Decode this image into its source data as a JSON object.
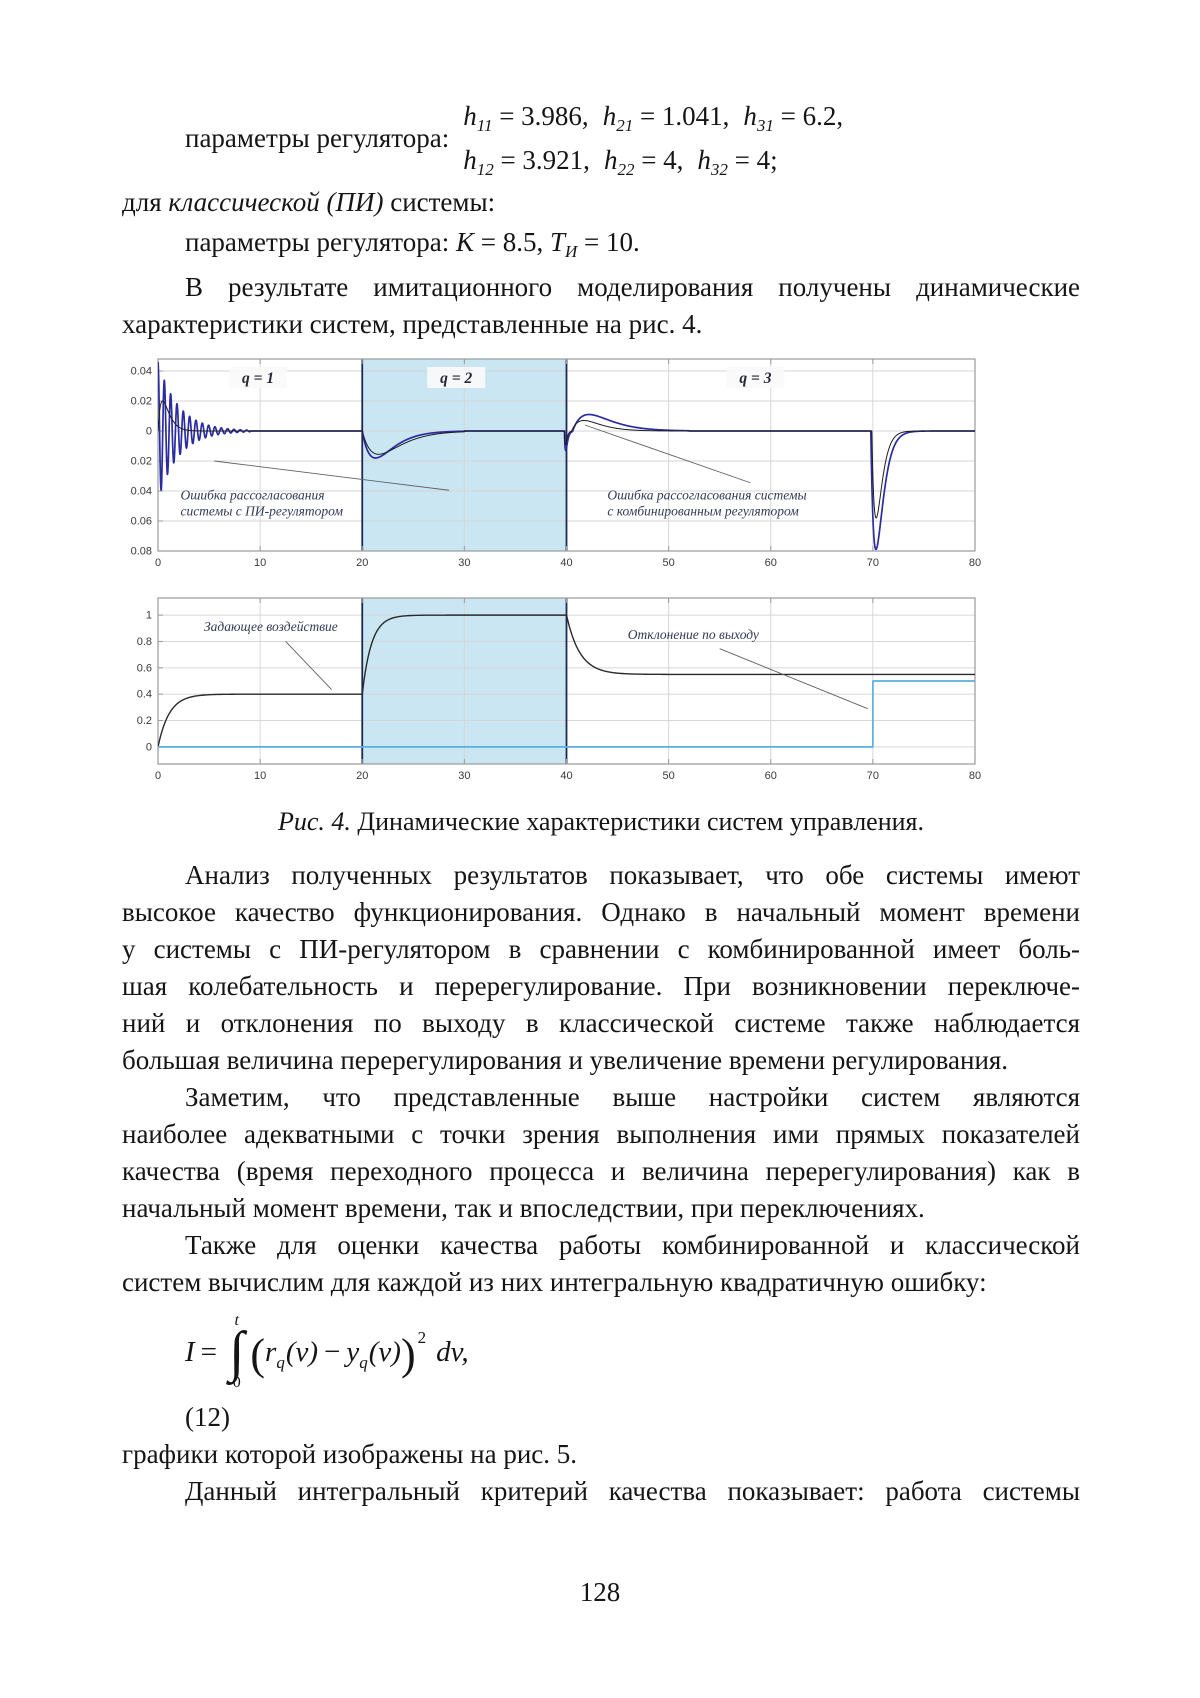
{
  "page_number": "128",
  "top": {
    "params_label": "параметры регулятора:",
    "h": {
      "row1": [
        {
          "v": "h",
          "s": "11",
          "eq": " = 3.986,"
        },
        {
          "v": "h",
          "s": "21",
          "eq": " = 1.041,"
        },
        {
          "v": "h",
          "s": "31",
          "eq": " = 6.2,"
        }
      ],
      "row2": [
        {
          "v": "h",
          "s": "12",
          "eq": " = 3.921,"
        },
        {
          "v": "h",
          "s": "22",
          "eq": " = 4,"
        },
        {
          "v": "h",
          "s": "32",
          "eq": " = 4;"
        }
      ]
    },
    "classic": {
      "pre": "для ",
      "italic": "классической (ПИ)",
      "post": " системы:"
    },
    "pi": {
      "label": "параметры регулятора: ",
      "k": "K",
      "k_eq": " = 8.5, ",
      "t": "T",
      "t_sub": "И",
      "t_eq": " = 10."
    }
  },
  "intro": [
    "В результате имитационного моделирования получены динамические",
    "характеристики систем, представленные на рис. 4."
  ],
  "caption": {
    "label": "Рис. 4.",
    "text": " Динамические характеристики систем управления."
  },
  "body": {
    "p1": [
      "Анализ полученных результатов показывает, что обе системы имеют",
      "высокое качество функционирования. Однако в начальный момент времени",
      "у системы с ПИ-регулятором в сравнении с комбинированной имеет боль-",
      "шая колебательность и перерегулирование. При возникновении переключе-",
      "ний и отклонения по выходу в классической системе также наблюдается",
      "большая величина перерегулирования и увеличение времени регулирования."
    ],
    "p2": [
      "Заметим, что представленные выше настройки систем являются",
      "наиболее адекватными с точки зрения выполнения ими прямых показателей",
      "качества (время переходного процесса и величина перерегулирования) как в",
      "начальный момент времени, так и впоследствии, при переключениях."
    ],
    "p3": [
      "Также для оценки качества работы комбинированной и классической",
      "систем вычислим для каждой из них интегральную квадратичную ошибку:"
    ],
    "eq_no": "(12)",
    "eq_tail": "графики которой изображены на рис. 5.",
    "p4": "Данный интегральный критерий качества показывает: работа системы"
  },
  "eq12": {
    "lhs": "I",
    "equals": "=",
    "upper": "t",
    "sign": "∫",
    "lower": "0",
    "lp": "(",
    "r": "r",
    "r_sub": "q",
    "r_arg": "(v)",
    "minus": "−",
    "y": "y",
    "y_sub": "q",
    "y_arg": "(v)",
    "rp": ")",
    "power": "2",
    "tail": "dv,"
  },
  "figure": {
    "colors": {
      "shade": "#c9e6f2",
      "region_edge": "#1b2a52",
      "grid": "#d6d6d6",
      "frame": "#9a9a9a",
      "tick_label": "#3a3a3a",
      "annotation": "#333a56",
      "leader": "#616161",
      "qlabel": "#262a36",
      "qlabel_bg": "#fafafa"
    }
  },
  "chart_data": [
    {
      "id": "errors",
      "type": "line",
      "title": "",
      "xlabel": "",
      "ylabel": "",
      "xlim": [
        0,
        80
      ],
      "ylim": [
        -0.08,
        0.048
      ],
      "xticks": [
        0,
        10,
        20,
        30,
        40,
        50,
        60,
        70,
        80
      ],
      "yticks": [
        0.04,
        0.02,
        0,
        -0.02,
        -0.04,
        -0.06,
        -0.08
      ],
      "ytick_labels": [
        "0.04",
        "0.02",
        "0",
        "-0.02",
        "-0.04",
        "-0.06",
        "-0.08"
      ],
      "shaded_region": {
        "x0": 20,
        "x1": 40
      },
      "region_labels": [
        {
          "text": "q = 1",
          "x": 9.8,
          "y": 0.034
        },
        {
          "text": "q = 2",
          "x": 29.2,
          "y": 0.034
        },
        {
          "text": "q = 3",
          "x": 58.5,
          "y": 0.034
        }
      ],
      "annotations": [
        {
          "lines": [
            "Ошибка рассогласования",
            "системы с ПИ-регулятором"
          ],
          "x": 2.2,
          "y": -0.0455,
          "leader": [
            [
              5.5,
              -0.02
            ],
            [
              28.5,
              -0.0395
            ]
          ]
        },
        {
          "lines": [
            "Ошибка рассогласования системы",
            "с комбинированным регулятором"
          ],
          "x": 44,
          "y": -0.0455,
          "leader": [
            [
              41.8,
              0.004
            ],
            [
              58,
              -0.0345
            ]
          ]
        }
      ],
      "series": [
        {
          "name": "ошибка системы с ПИ-регулятором",
          "color": "#2b2ba3",
          "width": 1.7,
          "segments": [
            {
              "kind": "osc",
              "t": [
                0,
                9
              ],
              "amp": 0.046,
              "decay": 0.5,
              "period": 0.62
            },
            {
              "kind": "flat",
              "t": [
                9,
                20
              ],
              "y": 0
            },
            {
              "kind": "bump",
              "t": [
                20,
                30
              ],
              "peak": -0.018,
              "tau": 1.3
            },
            {
              "kind": "flat",
              "t": [
                30,
                39.8
              ],
              "y": 0
            },
            {
              "kind": "bump",
              "t": [
                39.8,
                40.6
              ],
              "peak": -0.013,
              "tau": 0.12
            },
            {
              "kind": "bump",
              "t": [
                40.6,
                52
              ],
              "peak": 0.011,
              "tau": 1.6
            },
            {
              "kind": "flat",
              "t": [
                52,
                69.8
              ],
              "y": 0
            },
            {
              "kind": "bump",
              "t": [
                69.8,
                78
              ],
              "peak": -0.079,
              "tau": 0.5
            },
            {
              "kind": "flat",
              "t": [
                78,
                80
              ],
              "y": 0
            }
          ]
        },
        {
          "name": "ошибка системы с комбинированным регулятором",
          "color": "#1d1d1d",
          "width": 1,
          "segments": [
            {
              "kind": "bump",
              "t": [
                0,
                8
              ],
              "peak": 0.02,
              "tau": 0.45
            },
            {
              "kind": "flat",
              "t": [
                8,
                20
              ],
              "y": 0
            },
            {
              "kind": "bump",
              "t": [
                20,
                30
              ],
              "peak": -0.0155,
              "tau": 1.6
            },
            {
              "kind": "flat",
              "t": [
                30,
                39.8
              ],
              "y": 0
            },
            {
              "kind": "bump",
              "t": [
                39.8,
                40.5
              ],
              "peak": -0.009,
              "tau": 0.1
            },
            {
              "kind": "bump",
              "t": [
                40.5,
                50
              ],
              "peak": 0.007,
              "tau": 1.2
            },
            {
              "kind": "flat",
              "t": [
                50,
                69.9
              ],
              "y": 0
            },
            {
              "kind": "bump",
              "t": [
                69.9,
                76
              ],
              "peak": -0.058,
              "tau": 0.42
            },
            {
              "kind": "flat",
              "t": [
                76,
                80
              ],
              "y": 0
            }
          ]
        }
      ]
    },
    {
      "id": "outputs",
      "type": "line",
      "title": "",
      "xlabel": "",
      "ylabel": "",
      "xlim": [
        0,
        80
      ],
      "ylim": [
        -0.13,
        1.13
      ],
      "xticks": [
        0,
        10,
        20,
        30,
        40,
        50,
        60,
        70,
        80
      ],
      "yticks": [
        0,
        0.2,
        0.4,
        0.6,
        0.8,
        1
      ],
      "ytick_labels": [
        "0",
        "0.2",
        "0.4",
        "0.6",
        "0.8",
        "1"
      ],
      "shaded_region": {
        "x0": 20,
        "x1": 40
      },
      "region_labels": [],
      "annotations": [
        {
          "lines": [
            "Задающее воздействие"
          ],
          "x": 4.5,
          "y": 0.88,
          "leader": [
            [
              12.5,
              0.8
            ],
            [
              17,
              0.435
            ]
          ]
        },
        {
          "lines": [
            "Отклонение по выходу"
          ],
          "x": 46,
          "y": 0.82,
          "leader": [
            [
              55,
              0.745
            ],
            [
              69.5,
              0.29
            ]
          ]
        }
      ],
      "series": [
        {
          "name": "выход системы",
          "color": "#2a2a2a",
          "width": 1.4,
          "segments": [
            {
              "kind": "rise",
              "t": [
                0,
                20
              ],
              "from": 0,
              "to": 0.4,
              "tau": 1.1
            },
            {
              "kind": "rise",
              "t": [
                20,
                40
              ],
              "from": 0.4,
              "to": 1.0,
              "tau": 0.9
            },
            {
              "kind": "rise",
              "t": [
                40,
                80
              ],
              "from": 1.0,
              "to": 0.55,
              "tau": 1.3
            }
          ]
        },
        {
          "name": "отклонение по выходу",
          "color": "#58b0e0",
          "width": 1.7,
          "segments": [
            {
              "kind": "flat",
              "t": [
                0,
                70
              ],
              "y": 0
            },
            {
              "kind": "flat",
              "t": [
                70,
                80
              ],
              "y": 0.5
            }
          ]
        }
      ]
    }
  ]
}
